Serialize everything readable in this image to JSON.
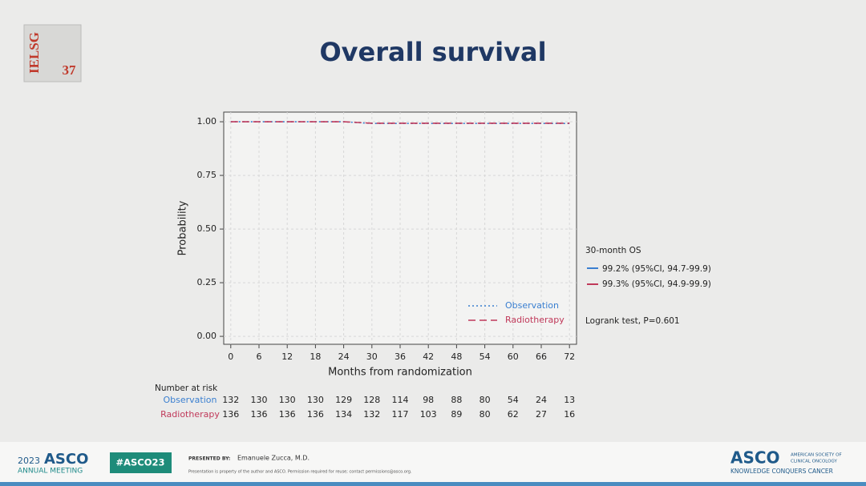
{
  "slide": {
    "logo": {
      "name": "IELSG",
      "number": "37"
    },
    "footer": {
      "year": "2023",
      "brand": "ASCO",
      "meeting": "ANNUAL MEETING",
      "hashtag": "#ASCO23",
      "presented_by": "PRESENTED BY:",
      "presenter": "Emanuele Zucca, M.D.",
      "disclaimer": "Presentation is property of the author and ASCO. Permission required for reuse; contact permissions@asco.org.",
      "society": "ASCO",
      "society_name_1": "AMERICAN SOCIETY OF",
      "society_name_2": "CLINICAL ONCOLOGY",
      "tagline": "KNOWLEDGE CONQUERS CANCER"
    }
  },
  "chart_data": {
    "type": "line",
    "title": "Overall survival",
    "x_label": "Months from randomization",
    "y_label": "Probability",
    "x": [
      0,
      6,
      12,
      18,
      24,
      30,
      36,
      42,
      48,
      54,
      60,
      66,
      72
    ],
    "series": [
      {
        "name": "Observation",
        "color": "#3a7fd0",
        "dash": "2,3",
        "values": [
          1,
          1,
          1,
          1,
          1,
          0.992,
          0.992,
          0.992,
          0.992,
          0.992,
          0.992,
          0.992,
          0.992
        ]
      },
      {
        "name": "Radiotherapy",
        "color": "#c0395a",
        "dash": "9,5",
        "values": [
          1,
          1,
          1,
          1,
          1,
          0.993,
          0.993,
          0.993,
          0.993,
          0.993,
          0.993,
          0.993,
          0.993
        ]
      }
    ],
    "xlim": [
      -1.5,
      73.5
    ],
    "ylim": [
      -0.037,
      1.045
    ],
    "xticks": [
      0,
      6,
      12,
      18,
      24,
      30,
      36,
      42,
      48,
      54,
      60,
      66,
      72
    ],
    "yticks": [
      {
        "value": 0,
        "label": "0.00"
      },
      {
        "value": 0.25,
        "label": "0.25"
      },
      {
        "value": 0.5,
        "label": "0.50"
      },
      {
        "value": 0.75,
        "label": "0.75"
      },
      {
        "value": 1,
        "label": "1.00"
      }
    ],
    "grid": true,
    "legend": "lower right",
    "annotations": {
      "heading": "30-month OS",
      "observation": "99.2% (95%CI, 94.7-99.9)",
      "radiotherapy": "99.3% (95%CI, 94.9-99.9)",
      "test": "Logrank test, P=0.601"
    },
    "risk_table": {
      "title": "Number at risk",
      "rows": [
        {
          "name": "Observation",
          "counts": [
            132,
            130,
            130,
            130,
            129,
            128,
            114,
            98,
            88,
            80,
            54,
            24,
            13
          ]
        },
        {
          "name": "Radiotherapy",
          "counts": [
            136,
            136,
            136,
            136,
            134,
            132,
            117,
            103,
            89,
            80,
            62,
            27,
            16
          ]
        }
      ]
    }
  }
}
